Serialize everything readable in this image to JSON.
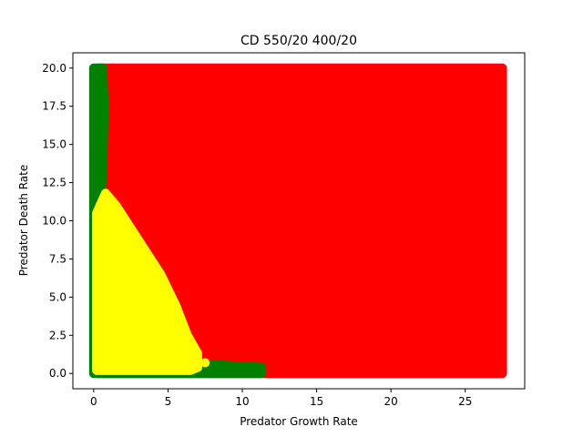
{
  "chart_data": {
    "type": "scatter",
    "title": "CD 550/20 400/20",
    "xlabel": "Predator Growth Rate",
    "ylabel": "Predator Death Rate",
    "xlim": [
      -1.4,
      29.0
    ],
    "ylim": [
      -1.0,
      21.0
    ],
    "xticks": [
      0,
      5,
      10,
      15,
      20,
      25
    ],
    "yticks": [
      0.0,
      2.5,
      5.0,
      7.5,
      10.0,
      12.5,
      15.0,
      17.5,
      20.0
    ],
    "xtick_labels": [
      "0",
      "5",
      "10",
      "15",
      "20",
      "25"
    ],
    "ytick_labels": [
      "0.0",
      "2.5",
      "5.0",
      "7.5",
      "10.0",
      "12.5",
      "15.0",
      "17.5",
      "20.0"
    ],
    "grid": false,
    "legend": "none",
    "colors": {
      "red": "#ff0000",
      "green": "#008000",
      "yellow": "#ffff00"
    },
    "regions": [
      {
        "color": "red",
        "x": [
          0.3,
          27.5
        ],
        "y": [
          0.0,
          20.0
        ]
      },
      {
        "color": "green",
        "polygon": [
          [
            0.0,
            20.0
          ],
          [
            0.6,
            20.0
          ],
          [
            0.7,
            17.5
          ],
          [
            0.6,
            13.0
          ],
          [
            0.5,
            12.0
          ],
          [
            0.4,
            1.0
          ],
          [
            11.3,
            0.4
          ],
          [
            11.3,
            0.0
          ],
          [
            0.0,
            0.0
          ]
        ]
      },
      {
        "color": "yellow",
        "polygon": [
          [
            0.2,
            0.2
          ],
          [
            0.2,
            10.5
          ],
          [
            0.8,
            11.8
          ],
          [
            1.5,
            11.0
          ],
          [
            2.5,
            9.5
          ],
          [
            3.5,
            8.0
          ],
          [
            4.5,
            6.5
          ],
          [
            5.5,
            4.5
          ],
          [
            6.3,
            2.5
          ],
          [
            7.0,
            1.3
          ],
          [
            7.0,
            0.4
          ],
          [
            6.5,
            0.2
          ]
        ]
      },
      {
        "color": "yellow",
        "points": [
          [
            7.5,
            0.7
          ]
        ]
      }
    ]
  }
}
